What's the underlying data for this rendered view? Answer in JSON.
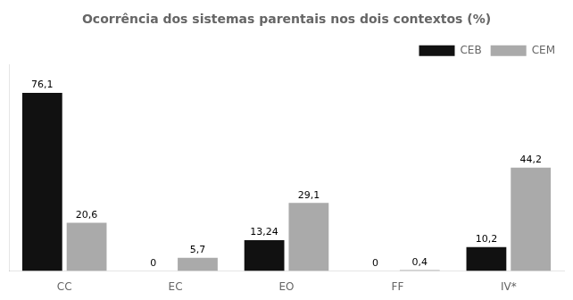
{
  "chart_data": {
    "type": "bar",
    "title": "Ocorrência dos sistemas parentais nos dois contextos (%)",
    "categories": [
      "CC",
      "EC",
      "EO",
      "FF",
      "IV*"
    ],
    "series": [
      {
        "name": "CEB",
        "color": "#111111",
        "values": [
          76.1,
          0,
          13.24,
          0,
          10.2
        ],
        "value_labels": [
          "76,1",
          "0",
          "13,24",
          "0",
          "10,2"
        ]
      },
      {
        "name": "CEM",
        "color": "#aaaaaa",
        "values": [
          20.6,
          5.7,
          29.1,
          0.4,
          44.2
        ],
        "value_labels": [
          "20,6",
          "5,7",
          "29,1",
          "0,4",
          "44,2"
        ]
      }
    ],
    "ylim": [
      0,
      88
    ],
    "data_labels": true,
    "tick_labels": "x",
    "grid": false,
    "legend": "upper right"
  }
}
